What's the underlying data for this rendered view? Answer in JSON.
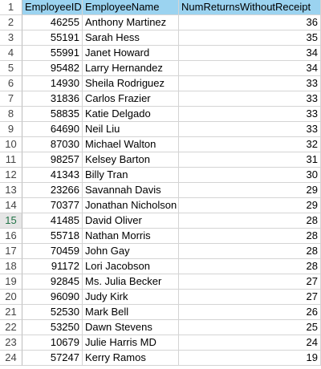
{
  "headers": [
    "EmployeeID",
    "EmployeeName",
    "NumReturnsWithoutReceipt"
  ],
  "selected_row": 15,
  "rows": [
    {
      "id": "46255",
      "name": "Anthony Martinez",
      "count": "36"
    },
    {
      "id": "55191",
      "name": "Sarah Hess",
      "count": "35"
    },
    {
      "id": "55991",
      "name": "Janet Howard",
      "count": "34"
    },
    {
      "id": "95482",
      "name": "Larry Hernandez",
      "count": "34"
    },
    {
      "id": "14930",
      "name": "Sheila Rodriguez",
      "count": "33"
    },
    {
      "id": "31836",
      "name": "Carlos Frazier",
      "count": "33"
    },
    {
      "id": "58835",
      "name": "Katie Delgado",
      "count": "33"
    },
    {
      "id": "64690",
      "name": "Neil Liu",
      "count": "33"
    },
    {
      "id": "87030",
      "name": "Michael Walton",
      "count": "32"
    },
    {
      "id": "98257",
      "name": "Kelsey Barton",
      "count": "31"
    },
    {
      "id": "41343",
      "name": "Billy Tran",
      "count": "30"
    },
    {
      "id": "23266",
      "name": "Savannah Davis",
      "count": "29"
    },
    {
      "id": "70377",
      "name": "Jonathan Nicholson",
      "count": "29"
    },
    {
      "id": "41485",
      "name": "David Oliver",
      "count": "28"
    },
    {
      "id": "55718",
      "name": "Nathan Morris",
      "count": "28"
    },
    {
      "id": "70459",
      "name": "John Gay",
      "count": "28"
    },
    {
      "id": "91172",
      "name": "Lori Jacobson",
      "count": "28"
    },
    {
      "id": "92845",
      "name": "Ms. Julia Becker",
      "count": "27"
    },
    {
      "id": "96090",
      "name": "Judy Kirk",
      "count": "27"
    },
    {
      "id": "52530",
      "name": "Mark Bell",
      "count": "26"
    },
    {
      "id": "53250",
      "name": "Dawn Stevens",
      "count": "25"
    },
    {
      "id": "10679",
      "name": "Julie Harris MD",
      "count": "24"
    },
    {
      "id": "57247",
      "name": "Kerry Ramos",
      "count": "19"
    }
  ]
}
